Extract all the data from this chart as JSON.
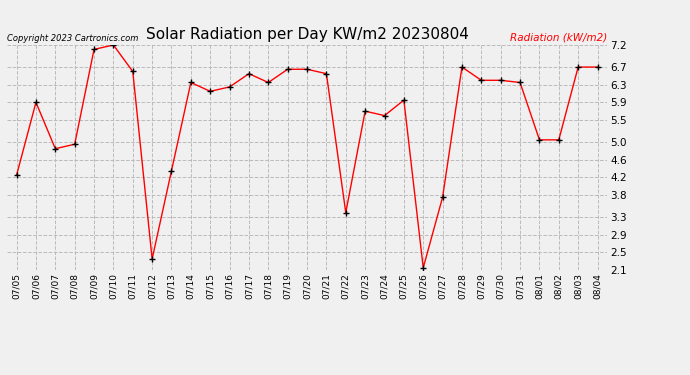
{
  "title": "Solar Radiation per Day KW/m2 20230804",
  "copyright": "Copyright 2023 Cartronics.com",
  "legend_label": "Radiation (kW/m2)",
  "dates": [
    "07/05",
    "07/06",
    "07/07",
    "07/08",
    "07/09",
    "07/10",
    "07/11",
    "07/12",
    "07/13",
    "07/14",
    "07/15",
    "07/16",
    "07/17",
    "07/18",
    "07/19",
    "07/20",
    "07/21",
    "07/22",
    "07/23",
    "07/24",
    "07/25",
    "07/26",
    "07/27",
    "07/28",
    "07/29",
    "07/30",
    "07/31",
    "08/01",
    "08/02",
    "08/03",
    "08/04"
  ],
  "values": [
    4.25,
    5.9,
    4.85,
    4.95,
    7.1,
    7.2,
    6.6,
    2.35,
    4.35,
    6.35,
    6.15,
    6.25,
    6.55,
    6.35,
    6.65,
    6.65,
    6.55,
    3.4,
    5.7,
    5.6,
    5.95,
    2.15,
    3.75,
    6.7,
    6.4,
    6.4,
    6.35,
    5.05,
    5.05,
    6.7,
    6.7
  ],
  "ylim": [
    2.1,
    7.2
  ],
  "yticks": [
    2.1,
    2.5,
    2.9,
    3.3,
    3.8,
    4.2,
    4.6,
    5.0,
    5.5,
    5.9,
    6.3,
    6.7,
    7.2
  ],
  "line_color": "red",
  "marker_color": "black",
  "bg_color": "#f0f0f0",
  "grid_color": "#bbbbbb",
  "title_fontsize": 11,
  "legend_color": "red",
  "copyright_color": "black"
}
